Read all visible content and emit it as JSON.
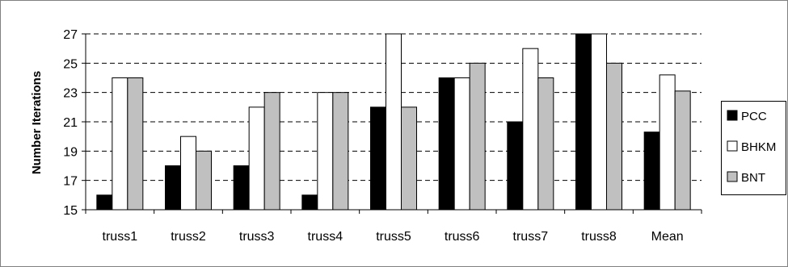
{
  "chart_data": {
    "type": "bar",
    "ylabel": "Number Iterations",
    "xlabel": "",
    "ylim": [
      15,
      27
    ],
    "yticks": [
      15,
      17,
      19,
      21,
      23,
      25,
      27
    ],
    "grid": "horizontal-dashed",
    "legend_position": "right",
    "categories": [
      "truss1",
      "truss2",
      "truss3",
      "truss4",
      "truss5",
      "truss6",
      "truss7",
      "truss8",
      "Mean"
    ],
    "series": [
      {
        "name": "PCC",
        "color": "#000000",
        "values": [
          16,
          18,
          18,
          16,
          22,
          24,
          21,
          27,
          20.3
        ]
      },
      {
        "name": "BHKM",
        "color": "#ffffff",
        "values": [
          24,
          20,
          22,
          23,
          27,
          24,
          26,
          27,
          24.2
        ]
      },
      {
        "name": "BNT",
        "color": "#c0c0c0",
        "values": [
          24,
          19,
          23,
          23,
          22,
          25,
          24,
          25,
          23.1
        ]
      }
    ]
  }
}
